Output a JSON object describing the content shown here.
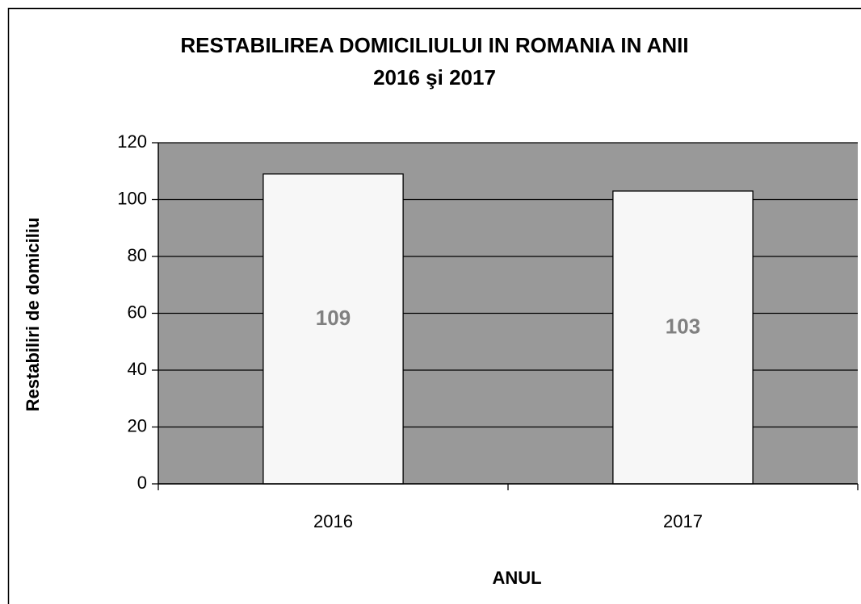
{
  "chart_data": {
    "type": "bar",
    "title": [
      "RESTABILIREA DOMICILIULUI IN ROMANIA IN  ANII",
      "2016 şi 2017"
    ],
    "x_label": "ANUL",
    "y_label": "Restabiliri de domiciliu",
    "categories": [
      "2016",
      "2017"
    ],
    "values": [
      109,
      103
    ],
    "color": "#f7f7f7",
    "ylim": [
      0,
      120
    ],
    "yticks": [
      0,
      20,
      40,
      60,
      80,
      100,
      120
    ],
    "grid": true,
    "plot_background": "#999999",
    "value_label_color": "#808080"
  }
}
